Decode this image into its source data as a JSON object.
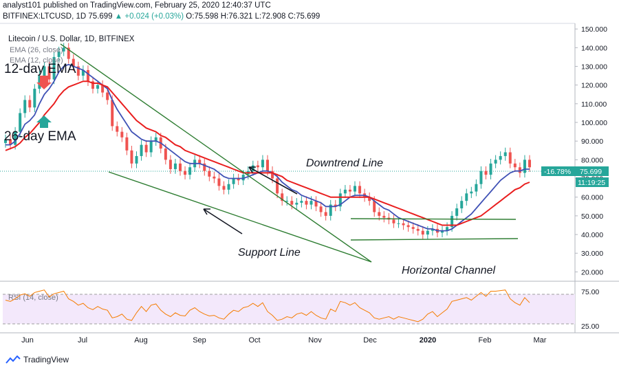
{
  "header": {
    "published_line": "analyst101 published on TradingView.com, February 25, 2020 12:40:37 UTC",
    "symbol": "BITFINEX:LTCUSD, 1D",
    "last": "75.699",
    "change": "+0.024 (+0.03%)",
    "ohlc": "O:75.598 H:76.321 L:72.908 C:75.699"
  },
  "legend": {
    "title": "Litecoin / U.S. Dollar, 1D, BITFINEX",
    "ema26": "EMA (26, close)",
    "ema12": "EMA (12, close)"
  },
  "annotations": {
    "ema12_label": "12-day EMA",
    "ema26_label": "26-day EMA",
    "downtrend": "Downtrend Line",
    "support": "Support Line",
    "channel": "Horizontal Channel"
  },
  "price_tags": {
    "pct": "-16.78%",
    "price": "75.699",
    "countdown": "11:19:25"
  },
  "rsi": {
    "label": "RSI (14, close)",
    "levels": [
      "75.00",
      "25.00"
    ]
  },
  "footer": {
    "brand": "TradingView"
  },
  "colors": {
    "ema12": "#e91e1e",
    "ema26": "#3f51b5",
    "candle_up": "#26a69a",
    "candle_down": "#ef5350",
    "trendlines": "#2e7d32",
    "rsi_line": "#f57c00",
    "rsi_band": "#f3e8fb"
  },
  "chart_data": {
    "type": "candlestick",
    "y_ticks": [
      "150.000",
      "140.000",
      "130.000",
      "120.000",
      "110.000",
      "100.000",
      "90.000",
      "80.000",
      "70.000",
      "60.000",
      "50.000",
      "40.000",
      "30.000",
      "20.000"
    ],
    "x_ticks": [
      "Jun",
      "Jul",
      "Aug",
      "Sep",
      "Oct",
      "Nov",
      "Dec",
      "2020",
      "Feb",
      "Mar"
    ],
    "ylim": [
      15,
      153
    ],
    "close": [
      91,
      88,
      95,
      105,
      112,
      108,
      118,
      125,
      130,
      123,
      135,
      138,
      140,
      134,
      130,
      125,
      128,
      122,
      118,
      120,
      116,
      112,
      98,
      95,
      92,
      85,
      78,
      82,
      88,
      84,
      90,
      92,
      86,
      80,
      75,
      78,
      74,
      72,
      76,
      80,
      78,
      74,
      71,
      70,
      66,
      64,
      67,
      70,
      69,
      72,
      74,
      77,
      76,
      80,
      74,
      70,
      62,
      58,
      58,
      56,
      57,
      58,
      56,
      58,
      55,
      52,
      50,
      56,
      55,
      62,
      64,
      63,
      66,
      62,
      60,
      58,
      52,
      50,
      49,
      48,
      46,
      46,
      45,
      44,
      43,
      42,
      40,
      42,
      43,
      41,
      42,
      44,
      50,
      54,
      58,
      62,
      63,
      67,
      74,
      72,
      78,
      80,
      82,
      84,
      78,
      76,
      73,
      80,
      76
    ],
    "ema12": [
      88,
      88,
      90,
      94,
      99,
      101,
      104,
      110,
      115,
      118,
      122,
      127,
      130,
      131,
      130,
      129,
      128,
      126,
      124,
      122,
      120,
      118,
      112,
      107,
      103,
      99,
      95,
      93,
      91,
      90,
      90,
      90,
      89,
      87,
      85,
      83,
      81,
      79,
      78,
      78,
      78,
      77,
      76,
      75,
      73,
      71,
      70,
      70,
      70,
      70,
      71,
      72,
      73,
      74,
      74,
      73,
      71,
      68,
      66,
      64,
      63,
      61,
      60,
      59,
      58,
      57,
      55,
      55,
      55,
      56,
      58,
      60,
      61,
      61,
      61,
      60,
      58,
      56,
      54,
      53,
      51,
      49,
      48,
      47,
      46,
      45,
      44,
      43,
      43,
      42,
      42,
      42,
      43,
      45,
      47,
      49,
      51,
      54,
      57,
      60,
      63,
      66,
      69,
      71,
      73,
      74,
      74,
      75,
      75
    ],
    "ema26": [
      85,
      86,
      87,
      89,
      92,
      94,
      97,
      100,
      104,
      107,
      110,
      114,
      117,
      119,
      120,
      121,
      122,
      122,
      121,
      121,
      120,
      119,
      116,
      113,
      110,
      107,
      104,
      101,
      99,
      97,
      96,
      95,
      93,
      92,
      90,
      88,
      87,
      85,
      84,
      83,
      82,
      81,
      80,
      79,
      78,
      77,
      76,
      75,
      74,
      73,
      73,
      73,
      73,
      73,
      73,
      73,
      72,
      71,
      69,
      68,
      67,
      66,
      65,
      64,
      63,
      62,
      61,
      60,
      60,
      60,
      60,
      60,
      60,
      60,
      60,
      60,
      59,
      58,
      57,
      56,
      55,
      54,
      53,
      52,
      51,
      50,
      49,
      48,
      47,
      46,
      45,
      45,
      45,
      45,
      46,
      47,
      48,
      49,
      50,
      52,
      54,
      56,
      58,
      60,
      62,
      64,
      65,
      67,
      68
    ],
    "rsi": [
      60,
      58,
      62,
      68,
      70,
      66,
      72,
      74,
      76,
      65,
      70,
      72,
      74,
      62,
      58,
      52,
      55,
      48,
      45,
      50,
      46,
      44,
      32,
      34,
      38,
      30,
      28,
      40,
      50,
      42,
      52,
      54,
      44,
      38,
      34,
      40,
      36,
      35,
      44,
      48,
      42,
      38,
      35,
      36,
      32,
      30,
      38,
      44,
      42,
      48,
      50,
      55,
      50,
      56,
      42,
      36,
      28,
      30,
      34,
      32,
      38,
      40,
      36,
      42,
      36,
      32,
      30,
      46,
      42,
      58,
      56,
      52,
      56,
      48,
      44,
      40,
      32,
      30,
      32,
      34,
      30,
      34,
      32,
      30,
      28,
      26,
      30,
      38,
      42,
      34,
      40,
      46,
      58,
      60,
      62,
      64,
      60,
      66,
      72,
      66,
      74,
      74,
      75,
      76,
      62,
      56,
      52,
      64,
      56
    ]
  }
}
